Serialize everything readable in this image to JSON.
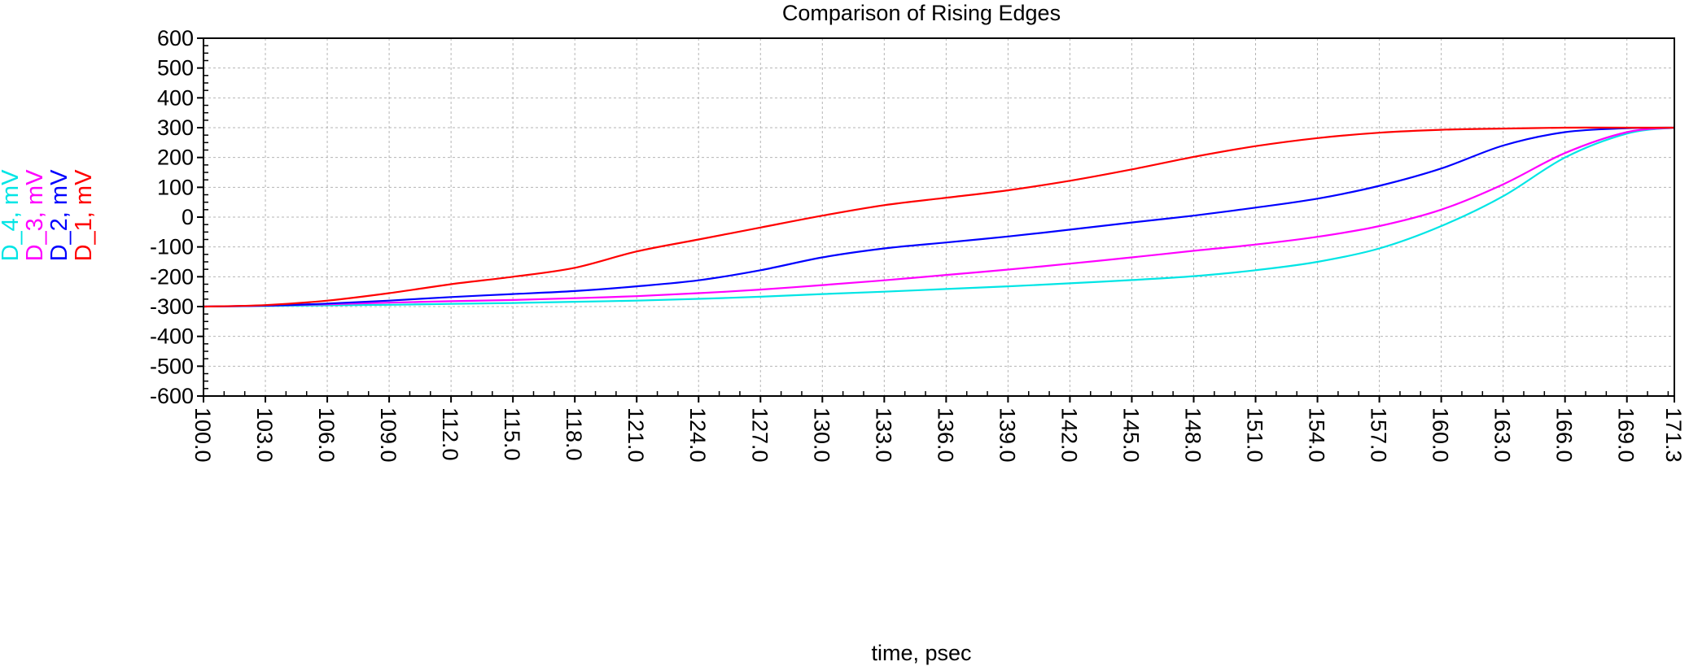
{
  "chart_data": {
    "type": "line",
    "title": "Comparison of Rising Edges",
    "xlabel": "time, psec",
    "xlim": [
      100.0,
      171.3
    ],
    "ylim": [
      -600,
      600
    ],
    "x_tick_labels": [
      "100.0",
      "103.0",
      "106.0",
      "109.0",
      "112.0",
      "115.0",
      "118.0",
      "121.0",
      "124.0",
      "127.0",
      "130.0",
      "133.0",
      "136.0",
      "139.0",
      "142.0",
      "145.0",
      "148.0",
      "151.0",
      "154.0",
      "157.0",
      "160.0",
      "163.0",
      "166.0",
      "169.0",
      "171.3"
    ],
    "y_tick_labels": [
      "600",
      "500",
      "400",
      "300",
      "200",
      "100",
      "0",
      "-100",
      "-200",
      "-300",
      "-400",
      "-500",
      "-600"
    ],
    "grid": true,
    "series": [
      {
        "name": "D_1, mV",
        "color": "#ff0000",
        "x": [
          100,
          103,
          106,
          109,
          112,
          115,
          118,
          121,
          124,
          127,
          130,
          133,
          136,
          139,
          142,
          145,
          148,
          151,
          154,
          157,
          160,
          163,
          166,
          169,
          171.3
        ],
        "y": [
          -300,
          -295,
          -280,
          -255,
          -225,
          -200,
          -170,
          -115,
          -75,
          -35,
          5,
          40,
          65,
          90,
          122,
          160,
          202,
          238,
          265,
          283,
          293,
          297,
          300,
          300,
          300
        ]
      },
      {
        "name": "D_2, mV",
        "color": "#0000ff",
        "x": [
          100,
          103,
          106,
          109,
          112,
          115,
          118,
          121,
          124,
          127,
          130,
          133,
          136,
          139,
          142,
          145,
          148,
          151,
          154,
          157,
          160,
          163,
          166,
          169,
          171.3
        ],
        "y": [
          -300,
          -297,
          -290,
          -280,
          -268,
          -258,
          -248,
          -232,
          -212,
          -178,
          -135,
          -105,
          -85,
          -65,
          -42,
          -18,
          5,
          32,
          62,
          105,
          163,
          240,
          285,
          298,
          300
        ]
      },
      {
        "name": "D_3, mV",
        "color": "#ff00ff",
        "x": [
          100,
          103,
          106,
          109,
          112,
          115,
          118,
          121,
          124,
          127,
          130,
          133,
          136,
          139,
          142,
          145,
          148,
          151,
          154,
          157,
          160,
          163,
          166,
          169,
          171.3
        ],
        "y": [
          -300,
          -297,
          -292,
          -287,
          -282,
          -278,
          -272,
          -265,
          -255,
          -243,
          -228,
          -212,
          -194,
          -176,
          -156,
          -135,
          -113,
          -92,
          -66,
          -30,
          25,
          110,
          215,
          285,
          300
        ]
      },
      {
        "name": "D_4, mV",
        "color": "#00e5e5",
        "x": [
          100,
          103,
          106,
          109,
          112,
          115,
          118,
          121,
          124,
          127,
          130,
          133,
          136,
          139,
          142,
          145,
          148,
          151,
          154,
          157,
          160,
          163,
          166,
          169,
          171.3
        ],
        "y": [
          -300,
          -298,
          -296,
          -294,
          -291,
          -288,
          -284,
          -280,
          -274,
          -267,
          -258,
          -250,
          -241,
          -232,
          -222,
          -211,
          -198,
          -178,
          -150,
          -105,
          -30,
          70,
          200,
          280,
          300
        ]
      }
    ]
  }
}
